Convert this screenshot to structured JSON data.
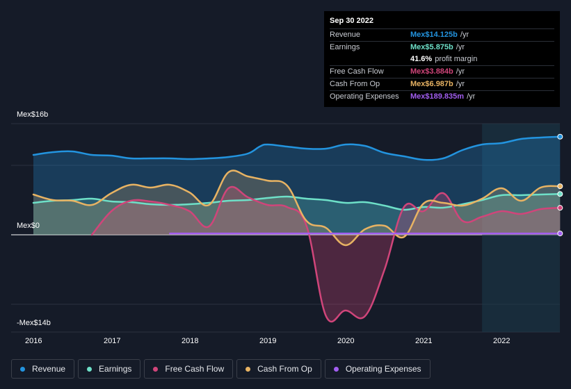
{
  "tooltip": {
    "date": "Sep 30 2022",
    "rows": [
      {
        "label": "Revenue",
        "value": "Mex$14.125b",
        "unit": "/yr",
        "color": "#2394df"
      },
      {
        "label": "Earnings",
        "value": "Mex$5.875b",
        "unit": "/yr",
        "color": "#6ee0c8"
      },
      {
        "label": "",
        "value": "41.6%",
        "unit": "profit margin",
        "color": "#ffffff"
      },
      {
        "label": "Free Cash Flow",
        "value": "Mex$3.884b",
        "unit": "/yr",
        "color": "#d0457a"
      },
      {
        "label": "Cash From Op",
        "value": "Mex$6.987b",
        "unit": "/yr",
        "color": "#e8b363"
      },
      {
        "label": "Operating Expenses",
        "value": "Mex$189.835m",
        "unit": "/yr",
        "color": "#a25ef0"
      }
    ]
  },
  "axis": {
    "top_label": "Mex$16b",
    "zero_label": "Mex$0",
    "bottom_label": "-Mex$14b",
    "years": [
      "2016",
      "2017",
      "2018",
      "2019",
      "2020",
      "2021",
      "2022"
    ]
  },
  "legend": [
    {
      "label": "Revenue",
      "color": "#2394df"
    },
    {
      "label": "Earnings",
      "color": "#6ee0c8"
    },
    {
      "label": "Free Cash Flow",
      "color": "#d0457a"
    },
    {
      "label": "Cash From Op",
      "color": "#e8b363"
    },
    {
      "label": "Operating Expenses",
      "color": "#a25ef0"
    }
  ],
  "chart_data": {
    "type": "area",
    "title": "",
    "xlabel": "",
    "ylabel": "Mex$",
    "ylim": [
      -14,
      16
    ],
    "x_unit": "year (decimal)",
    "x_domain": [
      2015.9,
      2022.85
    ],
    "forecast_region_start": 2021.75,
    "series": [
      {
        "name": "Revenue",
        "color": "#2394df",
        "points": [
          [
            2016.0,
            11.5
          ],
          [
            2016.25,
            11.9
          ],
          [
            2016.5,
            12.0
          ],
          [
            2016.75,
            11.5
          ],
          [
            2017.0,
            11.4
          ],
          [
            2017.25,
            11.0
          ],
          [
            2017.5,
            11.0
          ],
          [
            2017.75,
            11.0
          ],
          [
            2018.0,
            10.9
          ],
          [
            2018.25,
            11.0
          ],
          [
            2018.5,
            11.2
          ],
          [
            2018.75,
            11.7
          ],
          [
            2018.9,
            12.7
          ],
          [
            2019.0,
            13.0
          ],
          [
            2019.25,
            12.7
          ],
          [
            2019.5,
            12.4
          ],
          [
            2019.75,
            12.4
          ],
          [
            2020.0,
            13.0
          ],
          [
            2020.25,
            12.8
          ],
          [
            2020.5,
            11.8
          ],
          [
            2020.75,
            11.3
          ],
          [
            2021.0,
            10.8
          ],
          [
            2021.25,
            11.0
          ],
          [
            2021.5,
            12.2
          ],
          [
            2021.75,
            13.0
          ],
          [
            2022.0,
            13.2
          ],
          [
            2022.25,
            13.8
          ],
          [
            2022.5,
            14.0
          ],
          [
            2022.75,
            14.125
          ]
        ]
      },
      {
        "name": "Earnings",
        "color": "#6ee0c8",
        "points": [
          [
            2016.0,
            4.6
          ],
          [
            2016.25,
            4.9
          ],
          [
            2016.5,
            5.0
          ],
          [
            2016.75,
            5.2
          ],
          [
            2017.0,
            4.8
          ],
          [
            2017.25,
            4.7
          ],
          [
            2017.5,
            4.4
          ],
          [
            2017.75,
            4.3
          ],
          [
            2018.0,
            4.4
          ],
          [
            2018.25,
            4.6
          ],
          [
            2018.5,
            4.9
          ],
          [
            2018.75,
            5.0
          ],
          [
            2019.0,
            5.3
          ],
          [
            2019.25,
            5.5
          ],
          [
            2019.5,
            5.2
          ],
          [
            2019.75,
            5.0
          ],
          [
            2020.0,
            4.6
          ],
          [
            2020.25,
            4.7
          ],
          [
            2020.5,
            4.2
          ],
          [
            2020.75,
            3.6
          ],
          [
            2021.0,
            4.0
          ],
          [
            2021.25,
            3.9
          ],
          [
            2021.5,
            4.4
          ],
          [
            2021.75,
            5.0
          ],
          [
            2022.0,
            5.7
          ],
          [
            2022.25,
            5.7
          ],
          [
            2022.5,
            5.8
          ],
          [
            2022.75,
            5.875
          ]
        ]
      },
      {
        "name": "Free Cash Flow",
        "color": "#d0457a",
        "points": [
          [
            2016.75,
            0
          ],
          [
            2017.0,
            3.4
          ],
          [
            2017.25,
            4.9
          ],
          [
            2017.5,
            4.8
          ],
          [
            2017.75,
            4.3
          ],
          [
            2018.0,
            3.4
          ],
          [
            2018.25,
            1.2
          ],
          [
            2018.5,
            6.7
          ],
          [
            2018.75,
            5.4
          ],
          [
            2019.0,
            4.3
          ],
          [
            2019.25,
            4.0
          ],
          [
            2019.5,
            1.3
          ],
          [
            2019.75,
            -11.7
          ],
          [
            2020.0,
            -10.9
          ],
          [
            2020.25,
            -11.7
          ],
          [
            2020.5,
            -5.0
          ],
          [
            2020.75,
            4.0
          ],
          [
            2021.0,
            3.4
          ],
          [
            2021.25,
            6.0
          ],
          [
            2021.5,
            2.0
          ],
          [
            2021.75,
            2.6
          ],
          [
            2022.0,
            3.4
          ],
          [
            2022.25,
            3.0
          ],
          [
            2022.5,
            3.7
          ],
          [
            2022.75,
            3.884
          ]
        ]
      },
      {
        "name": "Cash From Op",
        "color": "#e8b363",
        "points": [
          [
            2016.0,
            5.8
          ],
          [
            2016.25,
            5.0
          ],
          [
            2016.5,
            4.9
          ],
          [
            2016.75,
            4.3
          ],
          [
            2017.0,
            6.0
          ],
          [
            2017.25,
            7.2
          ],
          [
            2017.5,
            6.8
          ],
          [
            2017.75,
            7.2
          ],
          [
            2018.0,
            6.1
          ],
          [
            2018.25,
            4.3
          ],
          [
            2018.5,
            9.0
          ],
          [
            2018.75,
            8.4
          ],
          [
            2019.0,
            7.8
          ],
          [
            2019.25,
            7.1
          ],
          [
            2019.5,
            2.0
          ],
          [
            2019.75,
            1.0
          ],
          [
            2020.0,
            -1.5
          ],
          [
            2020.25,
            0.8
          ],
          [
            2020.5,
            1.3
          ],
          [
            2020.75,
            -0.3
          ],
          [
            2021.0,
            4.5
          ],
          [
            2021.25,
            4.6
          ],
          [
            2021.5,
            4.2
          ],
          [
            2021.75,
            5.2
          ],
          [
            2022.0,
            6.7
          ],
          [
            2022.25,
            4.9
          ],
          [
            2022.5,
            6.8
          ],
          [
            2022.75,
            6.987
          ]
        ]
      },
      {
        "name": "Operating Expenses",
        "color": "#a25ef0",
        "points": [
          [
            2017.75,
            0.19
          ],
          [
            2018.0,
            0.19
          ],
          [
            2019.0,
            0.19
          ],
          [
            2020.0,
            0.19
          ],
          [
            2021.0,
            0.19
          ],
          [
            2022.0,
            0.19
          ],
          [
            2022.75,
            0.19
          ]
        ]
      }
    ]
  }
}
